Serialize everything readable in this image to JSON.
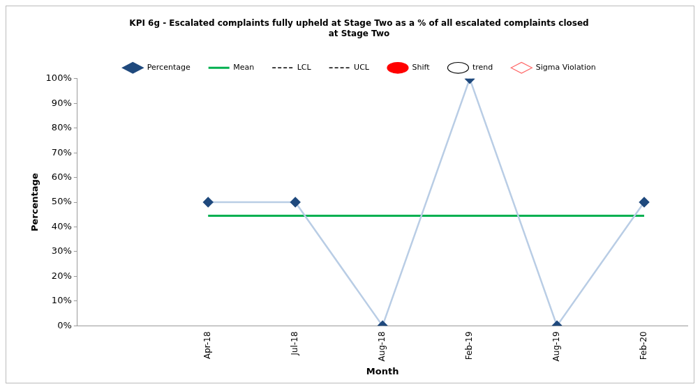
{
  "chart_data": {
    "type": "line",
    "title": "KPI 6g - Escalated complaints fully upheld at Stage Two as a % of all escalated complaints closed at Stage Two",
    "xlabel": "Month",
    "ylabel": "Percentage",
    "categories": [
      null,
      "Apr-18",
      "Jul-18",
      "Aug-18",
      "Feb-19",
      "Aug-19",
      "Feb-20"
    ],
    "series": [
      {
        "name": "Percentage",
        "color": "#b9cde5",
        "colors": [
          null,
          "#1f497d",
          "#1f497d",
          "#1f497d",
          "#1f497d",
          "#1f497d",
          "#1f497d"
        ],
        "marker": "diamond",
        "line_style": "solid",
        "values": [
          null,
          50,
          50,
          0,
          100,
          0,
          50
        ]
      },
      {
        "name": "Mean",
        "color": "#00b050",
        "marker": "none",
        "line_style": "solid",
        "values": [
          null,
          44.5,
          44.5,
          44.5,
          44.5,
          44.5,
          44.5
        ]
      },
      {
        "name": "LCL",
        "color": "#000000",
        "marker": "none",
        "line_style": "dashed",
        "values": [
          null,
          null,
          null,
          null,
          null,
          null,
          null
        ]
      },
      {
        "name": "UCL",
        "color": "#000000",
        "marker": "none",
        "line_style": "dashed",
        "values": [
          null,
          null,
          null,
          null,
          null,
          null,
          null
        ]
      },
      {
        "name": "Shift",
        "color": "#ff0000",
        "marker": "circle",
        "line_style": "none",
        "values": [
          null,
          null,
          null,
          null,
          null,
          null,
          null
        ]
      },
      {
        "name": "trend",
        "color": "#000000",
        "marker": "hollow-circle",
        "line_style": "none",
        "values": [
          null,
          null,
          null,
          null,
          null,
          null,
          null
        ]
      },
      {
        "name": "Sigma Violation",
        "color": "#ff6666",
        "marker": "hollow-diamond",
        "line_style": "none",
        "values": [
          null,
          null,
          null,
          null,
          null,
          null,
          null
        ]
      }
    ],
    "ylim": [
      0,
      100
    ],
    "yticks": [
      {
        "value": 0,
        "label": "0%"
      },
      {
        "value": 10,
        "label": "10%"
      },
      {
        "value": 20,
        "label": "20%"
      },
      {
        "value": 30,
        "label": "30%"
      },
      {
        "value": 40,
        "label": "40%"
      },
      {
        "value": 50,
        "label": "50%"
      },
      {
        "value": 60,
        "label": "60%"
      },
      {
        "value": 70,
        "label": "70%"
      },
      {
        "value": 80,
        "label": "80%"
      },
      {
        "value": 90,
        "label": "90%"
      },
      {
        "value": 100,
        "label": "100%"
      }
    ],
    "grid": false,
    "legend": "top"
  }
}
